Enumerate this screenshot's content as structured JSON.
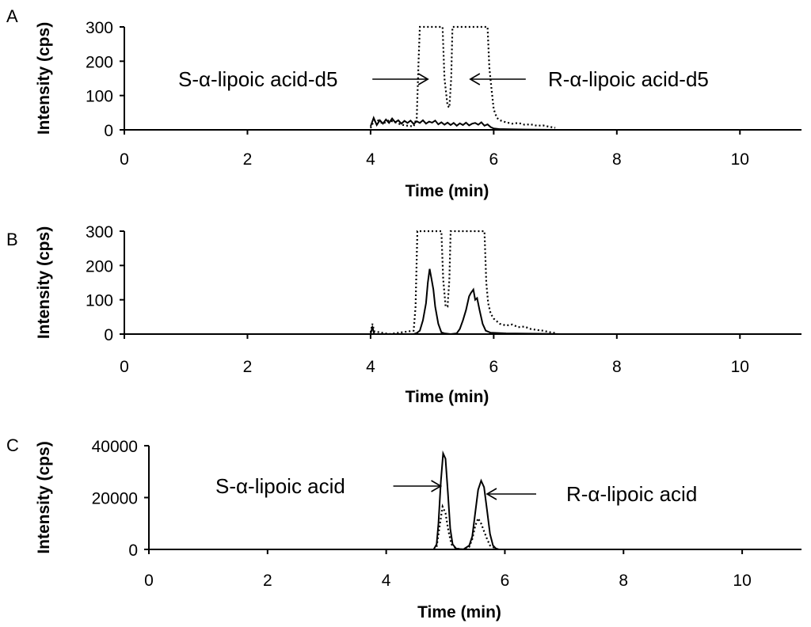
{
  "chart_data": [
    {
      "type": "line",
      "panel_label": "A",
      "title": "",
      "xlabel": "Time (min)",
      "ylabel": "Intensity (cps)",
      "xlim": [
        0,
        11
      ],
      "ylim": [
        0,
        300
      ],
      "xticks": [
        0,
        2,
        4,
        6,
        8,
        10
      ],
      "yticks": [
        0,
        100,
        200,
        300
      ],
      "grid": false,
      "series": [
        {
          "style": "solid",
          "points": [
            [
              4.0,
              10
            ],
            [
              4.05,
              35
            ],
            [
              4.1,
              14
            ],
            [
              4.15,
              28
            ],
            [
              4.2,
              18
            ],
            [
              4.25,
              30
            ],
            [
              4.3,
              20
            ],
            [
              4.35,
              33
            ],
            [
              4.4,
              22
            ],
            [
              4.45,
              28
            ],
            [
              4.5,
              18
            ],
            [
              4.55,
              26
            ],
            [
              4.6,
              20
            ],
            [
              4.65,
              27
            ],
            [
              4.7,
              17
            ],
            [
              4.75,
              25
            ],
            [
              4.8,
              20
            ],
            [
              4.85,
              28
            ],
            [
              4.9,
              18
            ],
            [
              4.95,
              24
            ],
            [
              5.0,
              21
            ],
            [
              5.05,
              27
            ],
            [
              5.1,
              16
            ],
            [
              5.15,
              22
            ],
            [
              5.2,
              15
            ],
            [
              5.25,
              21
            ],
            [
              5.3,
              14
            ],
            [
              5.35,
              20
            ],
            [
              5.4,
              12
            ],
            [
              5.45,
              19
            ],
            [
              5.5,
              14
            ],
            [
              5.55,
              21
            ],
            [
              5.6,
              13
            ],
            [
              5.65,
              18
            ],
            [
              5.7,
              20
            ],
            [
              5.75,
              15
            ],
            [
              5.8,
              22
            ],
            [
              5.85,
              12
            ],
            [
              5.9,
              16
            ],
            [
              5.95,
              8
            ],
            [
              6.0,
              4
            ],
            [
              6.1,
              2
            ],
            [
              6.5,
              1
            ],
            [
              7.0,
              0
            ]
          ]
        },
        {
          "style": "dotted",
          "points": [
            [
              4.0,
              5
            ],
            [
              4.05,
              25
            ],
            [
              4.1,
              30
            ],
            [
              4.2,
              18
            ],
            [
              4.3,
              28
            ],
            [
              4.4,
              22
            ],
            [
              4.5,
              15
            ],
            [
              4.6,
              12
            ],
            [
              4.7,
              10
            ],
            [
              4.75,
              35
            ],
            [
              4.78,
              200
            ],
            [
              4.8,
              300
            ],
            [
              5.17,
              300
            ],
            [
              5.2,
              150
            ],
            [
              5.25,
              70
            ],
            [
              5.28,
              65
            ],
            [
              5.31,
              150
            ],
            [
              5.33,
              300
            ],
            [
              5.9,
              300
            ],
            [
              5.93,
              180
            ],
            [
              5.97,
              110
            ],
            [
              6.0,
              60
            ],
            [
              6.05,
              35
            ],
            [
              6.1,
              28
            ],
            [
              6.2,
              22
            ],
            [
              6.3,
              18
            ],
            [
              6.4,
              20
            ],
            [
              6.5,
              15
            ],
            [
              6.6,
              16
            ],
            [
              6.7,
              12
            ],
            [
              6.8,
              13
            ],
            [
              6.9,
              9
            ],
            [
              7.0,
              6
            ]
          ]
        }
      ],
      "annotations": [
        {
          "text": "S-α-lipoic acid-d5",
          "x": 4.93,
          "y": 170,
          "direction": "right"
        },
        {
          "text": "R-α-lipoic acid-d5",
          "x": 5.62,
          "y": 170,
          "direction": "left"
        }
      ]
    },
    {
      "type": "line",
      "panel_label": "B",
      "title": "",
      "xlabel": "Time (min)",
      "ylabel": "Intensity (cps)",
      "xlim": [
        0,
        11
      ],
      "ylim": [
        0,
        300
      ],
      "xticks": [
        0,
        2,
        4,
        6,
        8,
        10
      ],
      "yticks": [
        0,
        100,
        200,
        300
      ],
      "grid": false,
      "series": [
        {
          "style": "solid",
          "points": [
            [
              0,
              0
            ],
            [
              4.0,
              0
            ],
            [
              4.03,
              20
            ],
            [
              4.06,
              0
            ],
            [
              4.7,
              0
            ],
            [
              4.75,
              3
            ],
            [
              4.8,
              10
            ],
            [
              4.85,
              40
            ],
            [
              4.9,
              90
            ],
            [
              4.93,
              150
            ],
            [
              4.96,
              190
            ],
            [
              4.99,
              160
            ],
            [
              5.02,
              130
            ],
            [
              5.05,
              80
            ],
            [
              5.1,
              30
            ],
            [
              5.15,
              5
            ],
            [
              5.2,
              2
            ],
            [
              5.3,
              0
            ],
            [
              5.4,
              2
            ],
            [
              5.45,
              15
            ],
            [
              5.5,
              40
            ],
            [
              5.55,
              70
            ],
            [
              5.6,
              110
            ],
            [
              5.63,
              120
            ],
            [
              5.67,
              130
            ],
            [
              5.7,
              100
            ],
            [
              5.73,
              105
            ],
            [
              5.77,
              70
            ],
            [
              5.82,
              30
            ],
            [
              5.87,
              10
            ],
            [
              5.95,
              4
            ],
            [
              6.2,
              2
            ],
            [
              6.8,
              1
            ],
            [
              7.1,
              0
            ],
            [
              11,
              0
            ]
          ]
        },
        {
          "style": "dotted",
          "points": [
            [
              4.0,
              5
            ],
            [
              4.03,
              30
            ],
            [
              4.06,
              8
            ],
            [
              4.3,
              0
            ],
            [
              4.7,
              10
            ],
            [
              4.73,
              80
            ],
            [
              4.76,
              300
            ],
            [
              5.15,
              300
            ],
            [
              5.18,
              160
            ],
            [
              5.22,
              80
            ],
            [
              5.25,
              80
            ],
            [
              5.28,
              160
            ],
            [
              5.3,
              300
            ],
            [
              5.85,
              300
            ],
            [
              5.88,
              150
            ],
            [
              5.91,
              90
            ],
            [
              5.95,
              60
            ],
            [
              6.0,
              45
            ],
            [
              6.1,
              30
            ],
            [
              6.2,
              25
            ],
            [
              6.3,
              28
            ],
            [
              6.4,
              20
            ],
            [
              6.5,
              22
            ],
            [
              6.6,
              15
            ],
            [
              6.7,
              12
            ],
            [
              6.8,
              10
            ],
            [
              6.9,
              6
            ],
            [
              7.0,
              3
            ]
          ]
        }
      ],
      "annotations": []
    },
    {
      "type": "line",
      "panel_label": "C",
      "title": "",
      "xlabel": "Time (min)",
      "ylabel": "Intensity (cps)",
      "xlim": [
        0,
        11
      ],
      "ylim": [
        0,
        40000
      ],
      "xticks": [
        0,
        2,
        4,
        6,
        8,
        10
      ],
      "yticks": [
        0,
        20000,
        40000
      ],
      "grid": false,
      "series": [
        {
          "style": "solid",
          "points": [
            [
              0,
              0
            ],
            [
              4.8,
              0
            ],
            [
              4.85,
              2000
            ],
            [
              4.88,
              10000
            ],
            [
              4.92,
              26000
            ],
            [
              4.96,
              37000
            ],
            [
              5.0,
              35000
            ],
            [
              5.04,
              22000
            ],
            [
              5.08,
              8000
            ],
            [
              5.12,
              2000
            ],
            [
              5.18,
              300
            ],
            [
              5.3,
              0
            ],
            [
              5.4,
              1500
            ],
            [
              5.45,
              5000
            ],
            [
              5.5,
              14000
            ],
            [
              5.55,
              23000
            ],
            [
              5.6,
              26500
            ],
            [
              5.65,
              24000
            ],
            [
              5.7,
              15000
            ],
            [
              5.75,
              6000
            ],
            [
              5.8,
              1500
            ],
            [
              5.85,
              300
            ],
            [
              5.9,
              0
            ],
            [
              11,
              0
            ]
          ]
        },
        {
          "style": "dotted",
          "points": [
            [
              4.8,
              0
            ],
            [
              4.85,
              1000
            ],
            [
              4.9,
              9000
            ],
            [
              4.95,
              16500
            ],
            [
              5.0,
              14000
            ],
            [
              5.05,
              7000
            ],
            [
              5.1,
              2000
            ],
            [
              5.18,
              300
            ],
            [
              5.3,
              0
            ],
            [
              5.4,
              1000
            ],
            [
              5.45,
              4000
            ],
            [
              5.5,
              9000
            ],
            [
              5.55,
              12000
            ],
            [
              5.6,
              10000
            ],
            [
              5.65,
              7000
            ],
            [
              5.7,
              4000
            ],
            [
              5.75,
              1500
            ],
            [
              5.85,
              300
            ],
            [
              5.9,
              0
            ]
          ]
        }
      ],
      "annotations": [
        {
          "text": "S-α-lipoic acid",
          "x": 4.92,
          "y": 27000,
          "direction": "right"
        },
        {
          "text": "R-α-lipoic acid",
          "x": 5.7,
          "y": 22000,
          "direction": "left"
        }
      ]
    }
  ]
}
